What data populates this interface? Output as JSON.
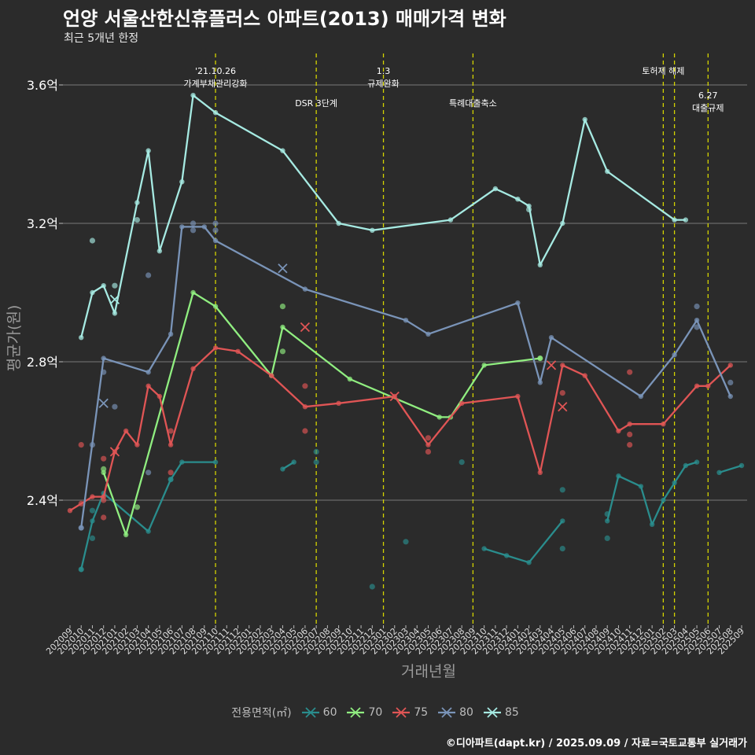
{
  "title": "언양 서울산한신휴플러스 아파트(2013) 매매가격 변화",
  "subtitle": "최근 5개년 한정",
  "caption": "©디아파트(dapt.kr) / 2025.09.09 / 자료=국토교통부 실거래가",
  "chart_data": {
    "type": "line",
    "xlabel": "거래년월",
    "ylabel": "평균가(원)",
    "ylim": [
      2.0,
      3.7
    ],
    "yticks": [
      2.4,
      2.8,
      3.2,
      3.6
    ],
    "ytick_labels": [
      "2.4억",
      "2.8억",
      "3.2억",
      "3.6억"
    ],
    "x_months": [
      "202009",
      "202010",
      "202011",
      "202012",
      "202101",
      "202102",
      "202103",
      "202104",
      "202105",
      "202106",
      "202107",
      "202108",
      "202109",
      "202110",
      "202111",
      "202112",
      "202201",
      "202202",
      "202203",
      "202204",
      "202205",
      "202206",
      "202207",
      "202208",
      "202209",
      "202210",
      "202211",
      "202212",
      "202301",
      "202302",
      "202303",
      "202304",
      "202305",
      "202306",
      "202307",
      "202308",
      "202309",
      "202310",
      "202311",
      "202312",
      "202401",
      "202402",
      "202403",
      "202404",
      "202405",
      "202406",
      "202407",
      "202408",
      "202409",
      "202410",
      "202411",
      "202412",
      "202501",
      "202502",
      "202503",
      "202504",
      "202505",
      "202506",
      "202507",
      "202508",
      "202509"
    ],
    "legend_title": "전용면적(㎡)",
    "grid": true,
    "legend_position": "bottom",
    "annotations": [
      {
        "x": "202110",
        "lines": [
          "'21.10.26",
          "가계부채관리강화"
        ],
        "row": 1
      },
      {
        "x": "202207",
        "lines": [
          "DSR 3단계"
        ],
        "row": 2
      },
      {
        "x": "202301",
        "lines": [
          "1.3",
          "규제완화"
        ],
        "row": 1
      },
      {
        "x": "202309",
        "lines": [
          "특례대출축소"
        ],
        "row": 2
      },
      {
        "x": "202502",
        "lines": [
          "토허제 해제"
        ],
        "row": 1
      },
      {
        "x": "202503",
        "lines": [],
        "row": 1
      },
      {
        "x": "202506",
        "lines": [
          "6.27",
          "대출규제"
        ],
        "row": 3
      }
    ],
    "series": [
      {
        "name": "60",
        "color": "#2a8d8d",
        "segments": [
          [
            [
              "202010",
              2.2
            ],
            [
              "202011",
              2.34
            ],
            [
              "202012",
              2.42
            ],
            [
              "202104",
              2.31
            ],
            [
              "202106",
              2.46
            ],
            [
              "202107",
              2.51
            ],
            [
              "202110",
              2.51
            ]
          ],
          [
            [
              "202204",
              2.49
            ],
            [
              "202205",
              2.51
            ]
          ],
          [
            [
              "202310",
              2.26
            ],
            [
              "202312",
              2.24
            ],
            [
              "202402",
              2.22
            ],
            [
              "202405",
              2.34
            ]
          ],
          [
            [
              "202409",
              2.34
            ],
            [
              "202410",
              2.47
            ],
            [
              "202412",
              2.44
            ],
            [
              "202501",
              2.33
            ],
            [
              "202502",
              2.4
            ],
            [
              "202503",
              2.45
            ],
            [
              "202504",
              2.5
            ],
            [
              "202505",
              2.51
            ]
          ],
          [
            [
              "202507",
              2.48
            ],
            [
              "202509",
              2.5
            ]
          ]
        ],
        "points": [
          [
            "202010",
            2.2
          ],
          [
            "202011",
            2.29
          ],
          [
            "202011",
            2.37
          ],
          [
            "202106",
            2.46
          ],
          [
            "202207",
            2.51
          ],
          [
            "202207",
            2.54
          ],
          [
            "202303",
            2.28
          ],
          [
            "202212",
            2.15
          ],
          [
            "202308",
            2.51
          ],
          [
            "202405",
            2.43
          ],
          [
            "202405",
            2.26
          ],
          [
            "202409",
            2.29
          ],
          [
            "202409",
            2.36
          ]
        ],
        "crosses": []
      },
      {
        "name": "70",
        "color": "#90ee80",
        "segments": [
          [
            [
              "202012",
              2.48
            ],
            [
              "202102",
              2.3
            ],
            [
              "202108",
              3.0
            ],
            [
              "202110",
              2.96
            ],
            [
              "202203",
              2.76
            ],
            [
              "202204",
              2.9
            ],
            [
              "202210",
              2.75
            ],
            [
              "202306",
              2.64
            ],
            [
              "202307",
              2.64
            ],
            [
              "202310",
              2.79
            ],
            [
              "202403",
              2.81
            ]
          ]
        ],
        "points": [
          [
            "202012",
            2.49
          ],
          [
            "202103",
            2.38
          ],
          [
            "202204",
            2.96
          ],
          [
            "202204",
            2.83
          ],
          [
            "202403",
            2.81
          ]
        ],
        "crosses": []
      },
      {
        "name": "75",
        "color": "#e05555",
        "segments": [
          [
            [
              "202009",
              2.37
            ],
            [
              "202011",
              2.41
            ],
            [
              "202012",
              2.41
            ],
            [
              "202101",
              2.54
            ],
            [
              "202102",
              2.6
            ],
            [
              "202103",
              2.56
            ],
            [
              "202104",
              2.73
            ],
            [
              "202105",
              2.7
            ],
            [
              "202106",
              2.56
            ],
            [
              "202108",
              2.78
            ],
            [
              "202110",
              2.84
            ],
            [
              "202112",
              2.83
            ],
            [
              "202203",
              2.76
            ],
            [
              "202206",
              2.67
            ],
            [
              "202209",
              2.68
            ],
            [
              "202302",
              2.7
            ],
            [
              "202305",
              2.56
            ],
            [
              "202308",
              2.68
            ],
            [
              "202401",
              2.7
            ],
            [
              "202403",
              2.48
            ],
            [
              "202405",
              2.79
            ],
            [
              "202407",
              2.76
            ],
            [
              "202410",
              2.6
            ],
            [
              "202411",
              2.62
            ],
            [
              "202502",
              2.62
            ],
            [
              "202505",
              2.73
            ],
            [
              "202506",
              2.73
            ],
            [
              "202508",
              2.79
            ]
          ]
        ],
        "points": [
          [
            "202010",
            2.56
          ],
          [
            "202010",
            2.39
          ],
          [
            "202012",
            2.52
          ],
          [
            "202012",
            2.35
          ],
          [
            "202012",
            2.4
          ],
          [
            "202106",
            2.6
          ],
          [
            "202106",
            2.48
          ],
          [
            "202206",
            2.6
          ],
          [
            "202206",
            2.73
          ],
          [
            "202305",
            2.54
          ],
          [
            "202305",
            2.58
          ],
          [
            "202405",
            2.71
          ],
          [
            "202411",
            2.77
          ],
          [
            "202411",
            2.59
          ],
          [
            "202411",
            2.56
          ]
        ],
        "crosses": [
          [
            "202101",
            2.54
          ],
          [
            "202206",
            2.9
          ],
          [
            "202302",
            2.7
          ],
          [
            "202404",
            2.79
          ],
          [
            "202405",
            2.67
          ]
        ]
      },
      {
        "name": "80",
        "color": "#7a94b8",
        "segments": [
          [
            [
              "202010",
              2.32
            ],
            [
              "202012",
              2.81
            ],
            [
              "202104",
              2.77
            ],
            [
              "202106",
              2.88
            ],
            [
              "202107",
              3.19
            ],
            [
              "202109",
              3.19
            ],
            [
              "202110",
              3.15
            ],
            [
              "202206",
              3.01
            ],
            [
              "202303",
              2.92
            ],
            [
              "202305",
              2.88
            ],
            [
              "202401",
              2.97
            ],
            [
              "202403",
              2.74
            ],
            [
              "202404",
              2.87
            ],
            [
              "202412",
              2.7
            ],
            [
              "202503",
              2.82
            ],
            [
              "202505",
              2.92
            ],
            [
              "202508",
              2.7
            ]
          ]
        ],
        "points": [
          [
            "202010",
            2.32
          ],
          [
            "202011",
            2.56
          ],
          [
            "202012",
            2.77
          ],
          [
            "202101",
            2.67
          ],
          [
            "202104",
            2.48
          ],
          [
            "202104",
            3.05
          ],
          [
            "202108",
            3.2
          ],
          [
            "202108",
            3.18
          ],
          [
            "202110",
            3.2
          ],
          [
            "202110",
            3.18
          ],
          [
            "202505",
            2.96
          ],
          [
            "202505",
            2.9
          ],
          [
            "202508",
            2.74
          ]
        ],
        "crosses": [
          [
            "202012",
            2.68
          ],
          [
            "202204",
            3.07
          ]
        ]
      },
      {
        "name": "85",
        "color": "#a6eae2",
        "segments": [
          [
            [
              "202010",
              2.87
            ],
            [
              "202011",
              3.0
            ],
            [
              "202012",
              3.02
            ],
            [
              "202101",
              2.94
            ],
            [
              "202103",
              3.26
            ],
            [
              "202104",
              3.41
            ],
            [
              "202105",
              3.12
            ],
            [
              "202107",
              3.32
            ],
            [
              "202108",
              3.57
            ],
            [
              "202110",
              3.52
            ],
            [
              "202204",
              3.41
            ],
            [
              "202209",
              3.2
            ],
            [
              "202212",
              3.18
            ],
            [
              "202307",
              3.21
            ],
            [
              "202311",
              3.3
            ],
            [
              "202401",
              3.27
            ],
            [
              "202402",
              3.25
            ],
            [
              "202403",
              3.08
            ],
            [
              "202405",
              3.2
            ],
            [
              "202407",
              3.5
            ],
            [
              "202409",
              3.35
            ],
            [
              "202503",
              3.21
            ],
            [
              "202504",
              3.21
            ]
          ]
        ],
        "points": [
          [
            "202011",
            3.15
          ],
          [
            "202101",
            3.02
          ],
          [
            "202103",
            3.21
          ],
          [
            "202402",
            3.24
          ]
        ],
        "crosses": [
          [
            "202101",
            2.98
          ]
        ]
      }
    ]
  }
}
